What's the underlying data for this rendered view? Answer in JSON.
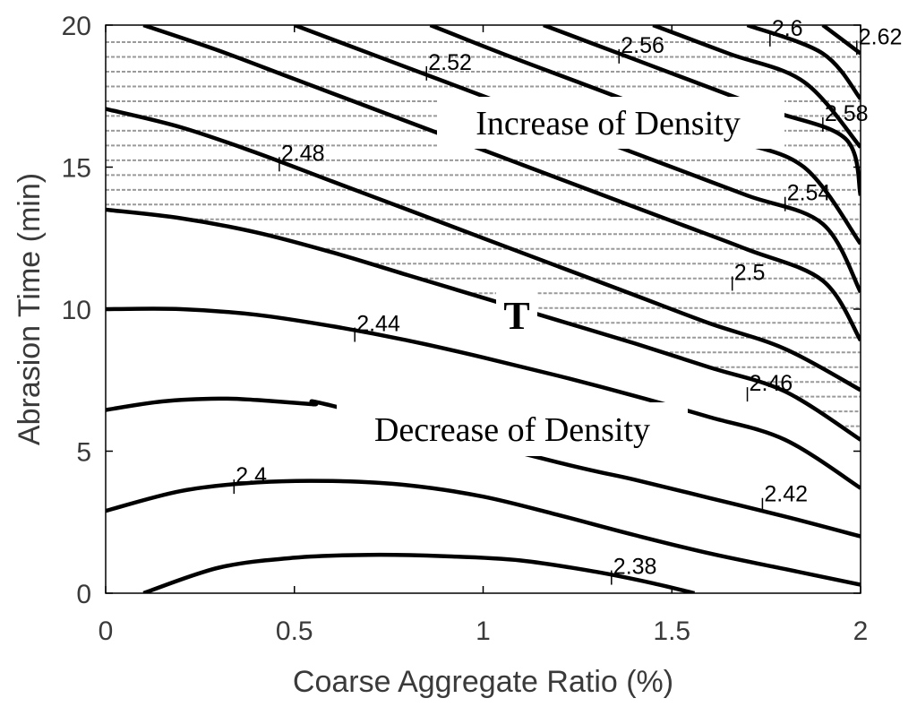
{
  "chart_data": {
    "type": "contour",
    "title": "",
    "xlabel": "Coarse Aggregate Ratio (%)",
    "ylabel": "Abrasion Time (min)",
    "xlim": [
      0,
      2
    ],
    "ylim": [
      0,
      20
    ],
    "xticks": [
      "0",
      "0.5",
      "1",
      "1.5",
      "2"
    ],
    "yticks": [
      "0",
      "5",
      "10",
      "15",
      "20"
    ],
    "grid": false,
    "contour_color": "#000000",
    "hatch_color": "#9a9a9a",
    "contours": [
      {
        "level": "2.38",
        "points": [
          [
            0.1,
            0.0
          ],
          [
            0.3,
            0.9
          ],
          [
            0.5,
            1.25
          ],
          [
            0.7,
            1.35
          ],
          [
            0.9,
            1.3
          ],
          [
            1.1,
            1.15
          ],
          [
            1.3,
            0.75
          ],
          [
            1.45,
            0.35
          ],
          [
            1.56,
            0.0
          ]
        ],
        "label_at": [
          1.34,
          0.55
        ]
      },
      {
        "level": "2.4",
        "points": [
          [
            0.0,
            2.9
          ],
          [
            0.2,
            3.6
          ],
          [
            0.4,
            3.9
          ],
          [
            0.6,
            3.95
          ],
          [
            0.8,
            3.8
          ],
          [
            1.0,
            3.4
          ],
          [
            1.2,
            2.75
          ],
          [
            1.4,
            2.05
          ],
          [
            1.6,
            1.4
          ],
          [
            1.8,
            0.85
          ],
          [
            2.0,
            0.3
          ]
        ],
        "label_at": [
          0.34,
          3.75
        ]
      },
      {
        "level": "2.42",
        "points": [
          [
            0.0,
            6.45
          ],
          [
            0.15,
            6.75
          ],
          [
            0.3,
            6.85
          ],
          [
            0.4,
            6.8
          ],
          [
            0.55,
            6.65
          ],
          [
            0.6,
            6.6
          ],
          [
            1.2,
            4.6
          ],
          [
            1.4,
            4.0
          ],
          [
            1.6,
            3.35
          ],
          [
            1.8,
            2.7
          ],
          [
            2.0,
            2.0
          ]
        ],
        "label_at": [
          1.74,
          3.1
        ]
      },
      {
        "level": "2.44",
        "points": [
          [
            0.0,
            10.0
          ],
          [
            0.2,
            10.0
          ],
          [
            0.4,
            9.8
          ],
          [
            0.6,
            9.4
          ],
          [
            0.8,
            8.9
          ],
          [
            1.0,
            8.3
          ],
          [
            1.2,
            7.65
          ],
          [
            1.4,
            6.95
          ],
          [
            1.6,
            6.2
          ],
          [
            1.8,
            5.4
          ],
          [
            2.0,
            3.7
          ]
        ],
        "label_at": [
          0.66,
          9.1
        ]
      },
      {
        "level": "2.46",
        "points": [
          [
            0.0,
            13.5
          ],
          [
            0.2,
            13.2
          ],
          [
            0.4,
            12.7
          ],
          [
            0.6,
            12.0
          ],
          [
            0.8,
            11.2
          ],
          [
            1.0,
            10.4
          ],
          [
            1.2,
            9.6
          ],
          [
            1.4,
            8.8
          ],
          [
            1.6,
            7.95
          ],
          [
            1.8,
            7.1
          ],
          [
            2.0,
            5.4
          ]
        ],
        "label_at": [
          1.7,
          7.0
        ]
      },
      {
        "level": "2.48",
        "points": [
          [
            0.0,
            17.05
          ],
          [
            0.2,
            16.4
          ],
          [
            0.4,
            15.5
          ],
          [
            0.6,
            14.5
          ],
          [
            0.8,
            13.5
          ],
          [
            1.0,
            12.5
          ],
          [
            1.2,
            11.5
          ],
          [
            1.4,
            10.5
          ],
          [
            1.6,
            9.5
          ],
          [
            1.8,
            8.6
          ],
          [
            2.0,
            7.15
          ]
        ],
        "label_at": [
          0.46,
          15.1
        ]
      },
      {
        "level": "2.5",
        "points": [
          [
            0.1,
            20.0
          ],
          [
            0.3,
            19.1
          ],
          [
            0.5,
            18.1
          ],
          [
            0.7,
            17.1
          ],
          [
            0.9,
            16.1
          ],
          [
            1.1,
            15.1
          ],
          [
            1.3,
            14.1
          ],
          [
            1.5,
            13.1
          ],
          [
            1.7,
            12.1
          ],
          [
            1.9,
            11.0
          ],
          [
            2.0,
            8.9
          ]
        ],
        "label_at": [
          1.66,
          10.9
        ]
      },
      {
        "level": "2.52",
        "points": [
          [
            0.5,
            20.0
          ],
          [
            0.7,
            19.0
          ],
          [
            0.9,
            18.0
          ],
          [
            1.1,
            17.0
          ],
          [
            1.3,
            16.0
          ],
          [
            1.5,
            15.0
          ],
          [
            1.7,
            14.0
          ],
          [
            1.9,
            13.0
          ],
          [
            2.0,
            10.6
          ]
        ],
        "label_at": [
          0.85,
          18.3
        ]
      },
      {
        "level": "2.54",
        "points": [
          [
            0.86,
            20.0
          ],
          [
            1.05,
            19.0
          ],
          [
            1.25,
            18.0
          ],
          [
            1.45,
            17.0
          ],
          [
            1.65,
            16.0
          ],
          [
            1.85,
            15.0
          ],
          [
            2.0,
            12.3
          ]
        ],
        "label_at": [
          1.8,
          13.7
        ]
      },
      {
        "level": "2.56",
        "points": [
          [
            1.16,
            20.0
          ],
          [
            1.36,
            19.0
          ],
          [
            1.56,
            18.0
          ],
          [
            1.76,
            17.0
          ],
          [
            1.96,
            16.0
          ],
          [
            2.0,
            14.0
          ]
        ],
        "label_at": [
          1.36,
          18.9
        ]
      },
      {
        "level": "2.58",
        "points": [
          [
            1.45,
            20.0
          ],
          [
            1.65,
            19.0
          ],
          [
            1.85,
            18.0
          ],
          [
            2.0,
            15.7
          ]
        ],
        "label_at": [
          1.9,
          16.5
        ]
      },
      {
        "level": "2.6",
        "points": [
          [
            1.7,
            20.0
          ],
          [
            1.9,
            19.0
          ],
          [
            2.0,
            17.4
          ]
        ],
        "label_at": [
          1.76,
          19.5
        ]
      },
      {
        "level": "2.62",
        "points": [
          [
            1.9,
            20.0
          ],
          [
            2.0,
            19.0
          ]
        ],
        "label_at": [
          1.99,
          19.2
        ]
      }
    ],
    "annotations": [
      {
        "text": "Increase of Density",
        "at": [
          1.28,
          16.3
        ]
      },
      {
        "text": "Decrease of Density",
        "at": [
          1.15,
          5.8
        ]
      },
      {
        "text": "T",
        "at": [
          1.09,
          9.4
        ]
      }
    ]
  }
}
